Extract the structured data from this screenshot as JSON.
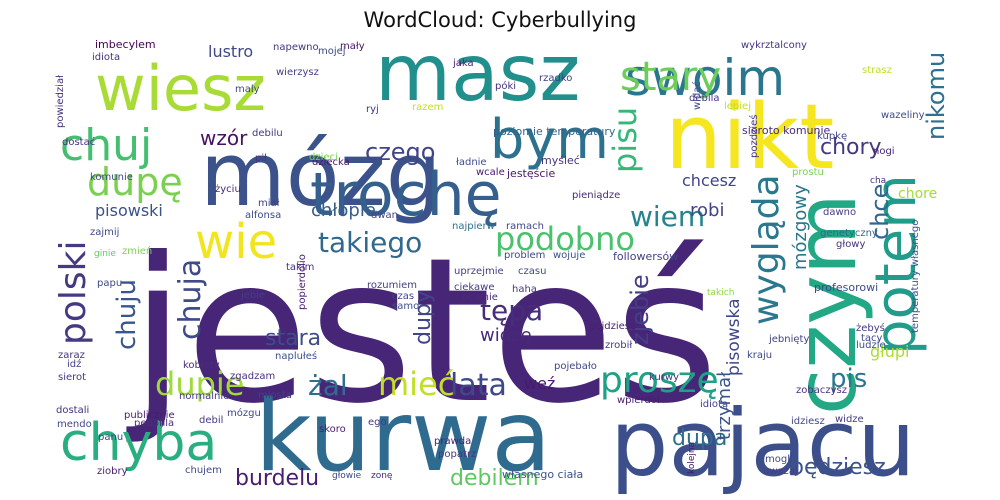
{
  "title": "WordCloud: Cyberbullying",
  "words": [
    {
      "text": "jesteś",
      "color": "#482677"
    },
    {
      "text": "kurwa",
      "color": "#2f6b8e"
    },
    {
      "text": "pajacu",
      "color": "#3c4f8a"
    },
    {
      "text": "mózg",
      "color": "#3b528b"
    },
    {
      "text": "nikt",
      "color": "#f5e61f"
    },
    {
      "text": "masz",
      "color": "#21908d"
    },
    {
      "text": "wiesz",
      "color": "#a8db34"
    },
    {
      "text": "czym",
      "color": "#22a884"
    },
    {
      "text": "trochę",
      "color": "#355f8d"
    },
    {
      "text": "swoim",
      "color": "#2a768e"
    },
    {
      "text": "bym",
      "color": "#2c718e"
    },
    {
      "text": "chyba",
      "color": "#29af7f"
    },
    {
      "text": "potem",
      "color": "#1f9d8a"
    },
    {
      "text": "wie",
      "color": "#f1e51d"
    },
    {
      "text": "chuj",
      "color": "#44bf70"
    },
    {
      "text": "stary",
      "color": "#6ccd5a"
    },
    {
      "text": "podobno",
      "color": "#4ac16d"
    },
    {
      "text": "dupę",
      "color": "#7ad151"
    },
    {
      "text": "polski",
      "color": "#443a83"
    },
    {
      "text": "pisu",
      "color": "#35b779"
    },
    {
      "text": "wygląda",
      "color": "#2a788e"
    },
    {
      "text": "proszę",
      "color": "#1fa188"
    },
    {
      "text": "mieć",
      "color": "#c0df25"
    },
    {
      "text": "dupie",
      "color": "#9fda3a"
    },
    {
      "text": "lata",
      "color": "#3e4989"
    },
    {
      "text": "takiego",
      "color": "#31688e"
    },
    {
      "text": "żal",
      "color": "#2e6e8e"
    },
    {
      "text": "chuja",
      "color": "#3e4a89"
    },
    {
      "text": "tępa",
      "color": "#472d7b"
    },
    {
      "text": "wiem",
      "color": "#25848e"
    },
    {
      "text": "czego",
      "color": "#414487"
    },
    {
      "text": "chuju",
      "color": "#39568c"
    },
    {
      "text": "chce",
      "color": "#31678e"
    },
    {
      "text": "nikomu",
      "color": "#2d718e"
    },
    {
      "text": "zjebie",
      "color": "#433e85"
    },
    {
      "text": "chory",
      "color": "#453882"
    },
    {
      "text": "burdelu",
      "color": "#481c6e"
    },
    {
      "text": "wzór",
      "color": "#471063"
    },
    {
      "text": "stara",
      "color": "#3d4d8a"
    },
    {
      "text": "lustro",
      "color": "#3f4889"
    },
    {
      "text": "dupa",
      "color": "#2e6f8e"
    },
    {
      "text": "będziesz",
      "color": "#3b528b"
    },
    {
      "text": "pis",
      "color": "#2a778e"
    },
    {
      "text": "debilem",
      "color": "#5ec962"
    },
    {
      "text": "dupy",
      "color": "#404588"
    },
    {
      "text": "widzę",
      "color": "#482878"
    },
    {
      "text": "trzymał",
      "color": "#3a548c"
    },
    {
      "text": "pisowska",
      "color": "#3f4788"
    },
    {
      "text": "mózgowy",
      "color": "#2a768e"
    },
    {
      "text": "chcesz",
      "color": "#404387"
    },
    {
      "text": "robi",
      "color": "#414487"
    },
    {
      "text": "chłopie",
      "color": "#355e8d"
    },
    {
      "text": "pisowski",
      "color": "#3b518b"
    },
    {
      "text": "chore",
      "color": "#a5db36"
    },
    {
      "text": "głupi",
      "color": "#addc30"
    },
    {
      "text": "weź",
      "color": "#481a6c"
    },
    {
      "text": "imbecylem",
      "color": "#440154"
    },
    {
      "text": "idiota",
      "color": "#46327e"
    },
    {
      "text": "napewno",
      "color": "#463480"
    },
    {
      "text": "mały",
      "color": "#481467"
    },
    {
      "text": "wierzysz",
      "color": "#423f85"
    },
    {
      "text": "mojej",
      "color": "#3f4788"
    },
    {
      "text": "wykrztalcony",
      "color": "#46337f"
    },
    {
      "text": "rzadko",
      "color": "#433d84"
    },
    {
      "text": "jaka",
      "color": "#482475"
    },
    {
      "text": "póki",
      "color": "#46307e"
    },
    {
      "text": "poziomie temperatury",
      "color": "#33638d"
    },
    {
      "text": "sieroto komunie",
      "color": "#472c7a"
    },
    {
      "text": "debila",
      "color": "#453581"
    },
    {
      "text": "pocisk",
      "color": "#3b528b"
    },
    {
      "text": "jestęście",
      "color": "#481668"
    },
    {
      "text": "myśleć",
      "color": "#46337f"
    },
    {
      "text": "ładnie",
      "color": "#3d4e8a"
    },
    {
      "text": "wcale",
      "color": "#48186a"
    },
    {
      "text": "dziecka",
      "color": "#48186a"
    },
    {
      "text": "pił",
      "color": "#453781"
    },
    {
      "text": "debilu",
      "color": "#453781"
    },
    {
      "text": "życiu",
      "color": "#482979"
    },
    {
      "text": "miał",
      "color": "#423f85"
    },
    {
      "text": "alfonsa",
      "color": "#3e4989"
    },
    {
      "text": "zajmij",
      "color": "#3e4989"
    },
    {
      "text": "zmień",
      "color": "#7ad151"
    },
    {
      "text": "ginie",
      "color": "#5ec962"
    },
    {
      "text": "papu",
      "color": "#3f4788"
    },
    {
      "text": "takim",
      "color": "#46307e"
    },
    {
      "text": "jebie",
      "color": "#433e85"
    },
    {
      "text": "popierdolio",
      "color": "#481b6d"
    },
    {
      "text": "rozumiem",
      "color": "#423f85"
    },
    {
      "text": "czas",
      "color": "#3f4788"
    },
    {
      "text": "samo",
      "color": "#3b528b"
    },
    {
      "text": "ciekawe",
      "color": "#443983"
    },
    {
      "text": "pewnie",
      "color": "#472c7a"
    },
    {
      "text": "haha",
      "color": "#453882"
    },
    {
      "text": "problem",
      "color": "#3f4788"
    },
    {
      "text": "wojuje",
      "color": "#3b518b"
    },
    {
      "text": "uprzejmie",
      "color": "#433d84"
    },
    {
      "text": "czasu",
      "color": "#3f4889"
    },
    {
      "text": "najpierw",
      "color": "#2c728e"
    },
    {
      "text": "ramach",
      "color": "#3f4788"
    },
    {
      "text": "pieniądze",
      "color": "#472a7a"
    },
    {
      "text": "followersów",
      "color": "#424086"
    },
    {
      "text": "takich",
      "color": "#8fd744"
    },
    {
      "text": "pójdziesz",
      "color": "#482173"
    },
    {
      "text": "zrobił",
      "color": "#453882"
    },
    {
      "text": "kurwy",
      "color": "#46327e"
    },
    {
      "text": "kraju",
      "color": "#3e4989"
    },
    {
      "text": "jebnięty",
      "color": "#423f85"
    },
    {
      "text": "tacy",
      "color": "#3f4788"
    },
    {
      "text": "żebyś",
      "color": "#453781"
    },
    {
      "text": "ludzie",
      "color": "#3d4e8a"
    },
    {
      "text": "profesorowi",
      "color": "#3e4989"
    },
    {
      "text": "genetyczny",
      "color": "#31688e"
    },
    {
      "text": "głowy",
      "color": "#46327e"
    },
    {
      "text": "dawno",
      "color": "#433e85"
    },
    {
      "text": "nogi",
      "color": "#482677"
    },
    {
      "text": "cha",
      "color": "#46327e"
    },
    {
      "text": "kupkę",
      "color": "#3f4788"
    },
    {
      "text": "temperatury własnego",
      "color": "#3b528b"
    },
    {
      "text": "wazeliny",
      "color": "#3e4a89"
    },
    {
      "text": "prostu",
      "color": "#7ad151"
    },
    {
      "text": "pozdzieś",
      "color": "#453882"
    },
    {
      "text": "lepiej",
      "color": "#c2df23"
    },
    {
      "text": "chłopie",
      "color": "#355e8d"
    },
    {
      "text": "dupy",
      "color": "#404588"
    },
    {
      "text": "kobiety",
      "color": "#472c7a"
    },
    {
      "text": "naplułeś",
      "color": "#3b528b"
    },
    {
      "text": "zgadzam",
      "color": "#46327e"
    },
    {
      "text": "normalnie",
      "color": "#453781"
    },
    {
      "text": "miosta",
      "color": "#424086"
    },
    {
      "text": "pojebało",
      "color": "#3f4788"
    },
    {
      "text": "publicznie",
      "color": "#481a6c"
    },
    {
      "text": "pedofila",
      "color": "#46307e"
    },
    {
      "text": "mózgu",
      "color": "#3f4788"
    },
    {
      "text": "debil",
      "color": "#453781"
    },
    {
      "text": "idiotą",
      "color": "#404387"
    },
    {
      "text": "wpierdol",
      "color": "#481c6e"
    },
    {
      "text": "zobaczysz",
      "color": "#46327e"
    },
    {
      "text": "widze",
      "color": "#453882"
    },
    {
      "text": "idziesz",
      "color": "#3f4788"
    },
    {
      "text": "mogli",
      "color": "#3e4a89"
    },
    {
      "text": "uważaj",
      "color": "#433e85"
    },
    {
      "text": "prawda",
      "color": "#482173"
    },
    {
      "text": "popatrz",
      "color": "#453781"
    },
    {
      "text": "własnego ciała",
      "color": "#3b528b"
    },
    {
      "text": "kolejna",
      "color": "#48186a"
    },
    {
      "text": "zonę",
      "color": "#472c7a"
    },
    {
      "text": "głowie",
      "color": "#3f4788"
    },
    {
      "text": "skoro",
      "color": "#481c6e"
    },
    {
      "text": "ego",
      "color": "#453882"
    },
    {
      "text": "dostali",
      "color": "#46327e"
    },
    {
      "text": "mendo",
      "color": "#3e4989"
    },
    {
      "text": "panu",
      "color": "#423f85"
    },
    {
      "text": "ziobry",
      "color": "#481b6d"
    },
    {
      "text": "chujem",
      "color": "#3e4989"
    },
    {
      "text": "sierot",
      "color": "#453781"
    },
    {
      "text": "zaraz",
      "color": "#46327e"
    },
    {
      "text": "idź",
      "color": "#433e85"
    },
    {
      "text": "komunie",
      "color": "#3e4989"
    },
    {
      "text": "dostać",
      "color": "#46327e"
    },
    {
      "text": "maly",
      "color": "#3f4788"
    },
    {
      "text": "powiedział",
      "color": "#46327e"
    },
    {
      "text": "ryj",
      "color": "#453781"
    },
    {
      "text": "dwan",
      "color": "#3f4788"
    },
    {
      "text": "cienie",
      "color": "#5ec962"
    },
    {
      "text": "dzieci",
      "color": "#7ad151"
    },
    {
      "text": "razem",
      "color": "#c2df23"
    },
    {
      "text": "durnych",
      "color": "#7ad151"
    },
    {
      "text": "widać",
      "color": "#3e4a89"
    },
    {
      "text": "strasz",
      "color": "#c2df23"
    },
    {
      "text": "szczepić",
      "color": "#3b528b"
    }
  ]
}
